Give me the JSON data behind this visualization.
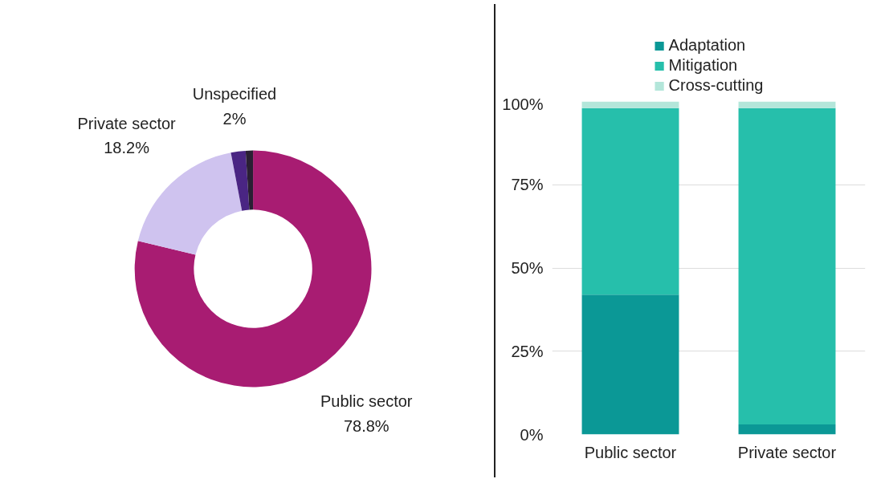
{
  "chart_data": [
    {
      "type": "donut",
      "categories": [
        "Public sector",
        "Private sector",
        "Unspecified",
        null
      ],
      "values": [
        78.8,
        18.2,
        2,
        1
      ],
      "value_labels": [
        "78.8%",
        "18.2%",
        "2%",
        null
      ],
      "colors": [
        "#a81c72",
        "#cfc3ef",
        "#4a2583",
        "#2a1f33"
      ]
    },
    {
      "type": "bar",
      "stacked": true,
      "categories": [
        "Public sector",
        "Private sector"
      ],
      "series": [
        {
          "name": "Adaptation",
          "color": "#0b9896",
          "values": [
            42,
            3
          ]
        },
        {
          "name": "Mitigation",
          "color": "#26bfab",
          "values": [
            56,
            95
          ]
        },
        {
          "name": "Cross-cutting",
          "color": "#b3e6da",
          "values": [
            2,
            2
          ]
        }
      ],
      "ylim": [
        0,
        100
      ],
      "yticks": [
        {
          "value": 0,
          "label": "0%"
        },
        {
          "value": 25,
          "label": "25%"
        },
        {
          "value": 50,
          "label": "50%"
        },
        {
          "value": 75,
          "label": "75%"
        },
        {
          "value": 100,
          "label": "100%"
        }
      ],
      "grid": "y",
      "legend": "top"
    }
  ]
}
